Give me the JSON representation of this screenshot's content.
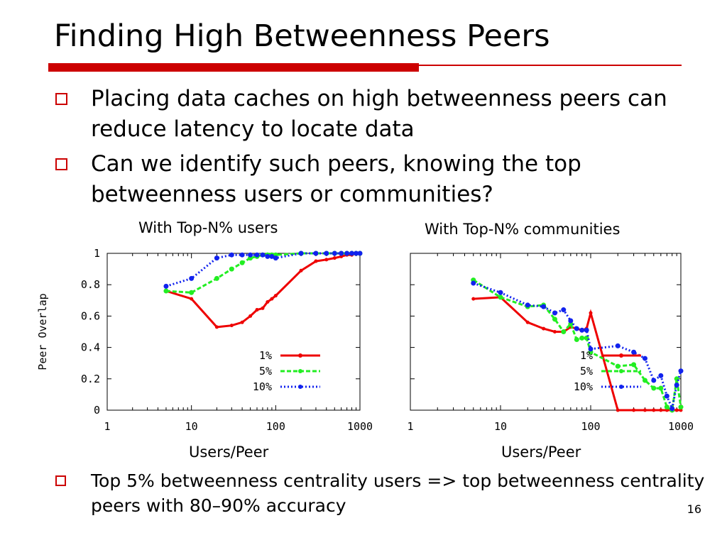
{
  "slide": {
    "title": "Finding High Betweenness Peers",
    "bullets": [
      "Placing data caches on high betweenness peers can reduce latency to locate data",
      "Can we identify such peers, knowing the top betweenness users or communities?"
    ],
    "bottom_bullet": "Top 5% betweenness centrality users => top betweenness centrality peers with 80–90% accuracy",
    "page_number": "16",
    "accent_color": "#cc0000"
  },
  "chart_data": [
    {
      "type": "line",
      "title": "With Top-N% users",
      "xlabel": "Users/Peer",
      "ylabel": "Peer Overlap",
      "xscale": "log",
      "xlim": [
        1,
        1000
      ],
      "ylim": [
        0,
        1
      ],
      "xticks": [
        "1",
        "10",
        "100",
        "1000"
      ],
      "yticks": [
        "0",
        "0.2",
        "0.4",
        "0.6",
        "0.8",
        "1"
      ],
      "legend_position": "bottom-right",
      "series": [
        {
          "name": "1%",
          "color": "#ee0000",
          "style": "solid",
          "x": [
            5,
            10,
            20,
            30,
            40,
            50,
            60,
            70,
            80,
            90,
            100,
            200,
            300,
            400,
            500,
            600,
            700,
            800,
            900,
            1000
          ],
          "y": [
            0.76,
            0.71,
            0.53,
            0.54,
            0.56,
            0.6,
            0.64,
            0.65,
            0.69,
            0.71,
            0.73,
            0.89,
            0.95,
            0.96,
            0.97,
            0.98,
            0.99,
            0.99,
            1.0,
            1.0
          ]
        },
        {
          "name": "5%",
          "color": "#22ee22",
          "style": "dashed",
          "x": [
            5,
            10,
            20,
            30,
            40,
            50,
            60,
            70,
            80,
            90,
            100,
            200,
            300,
            400,
            500,
            600,
            700,
            800,
            900,
            1000
          ],
          "y": [
            0.76,
            0.75,
            0.84,
            0.9,
            0.94,
            0.97,
            0.98,
            0.99,
            0.99,
            0.99,
            0.99,
            1.0,
            1.0,
            1.0,
            1.0,
            1.0,
            1.0,
            1.0,
            1.0,
            1.0
          ]
        },
        {
          "name": "10%",
          "color": "#1122ee",
          "style": "dotted",
          "x": [
            5,
            10,
            20,
            30,
            40,
            50,
            60,
            70,
            80,
            90,
            100,
            200,
            300,
            400,
            500,
            600,
            700,
            800,
            900,
            1000
          ],
          "y": [
            0.79,
            0.84,
            0.97,
            0.99,
            0.99,
            0.99,
            0.99,
            0.99,
            0.98,
            0.98,
            0.97,
            1.0,
            1.0,
            1.0,
            1.0,
            1.0,
            1.0,
            1.0,
            1.0,
            1.0
          ]
        }
      ]
    },
    {
      "type": "line",
      "title": "With Top-N% communities",
      "xlabel": "Users/Peer",
      "xscale": "log",
      "xlim": [
        1,
        1000
      ],
      "ylim": [
        0,
        1
      ],
      "xticks": [
        "1",
        "10",
        "100",
        "1000"
      ],
      "legend_position": "bottom-right",
      "series": [
        {
          "name": "1%",
          "color": "#ee0000",
          "style": "solid",
          "x": [
            5,
            10,
            20,
            30,
            40,
            50,
            60,
            70,
            80,
            90,
            100,
            200,
            300,
            400,
            500,
            600,
            700,
            800,
            900,
            1000
          ],
          "y": [
            0.71,
            0.72,
            0.56,
            0.52,
            0.5,
            0.5,
            0.53,
            0.52,
            0.51,
            0.52,
            0.62,
            0.0,
            0.0,
            0.0,
            0.0,
            0.0,
            0.0,
            0.0,
            0.0,
            0.0
          ]
        },
        {
          "name": "5%",
          "color": "#22ee22",
          "style": "dashed",
          "x": [
            5,
            10,
            20,
            30,
            40,
            50,
            60,
            70,
            80,
            90,
            100,
            200,
            300,
            400,
            500,
            600,
            700,
            800,
            900,
            1000
          ],
          "y": [
            0.83,
            0.72,
            0.66,
            0.67,
            0.58,
            0.5,
            0.55,
            0.45,
            0.46,
            0.46,
            0.37,
            0.28,
            0.29,
            0.19,
            0.14,
            0.14,
            0.02,
            0.0,
            0.2,
            0.02
          ]
        },
        {
          "name": "10%",
          "color": "#1122ee",
          "style": "dotted",
          "x": [
            5,
            10,
            20,
            30,
            40,
            50,
            60,
            70,
            80,
            90,
            100,
            200,
            300,
            400,
            500,
            600,
            700,
            800,
            900,
            1000
          ],
          "y": [
            0.81,
            0.75,
            0.67,
            0.66,
            0.62,
            0.64,
            0.57,
            0.52,
            0.51,
            0.51,
            0.39,
            0.41,
            0.37,
            0.33,
            0.19,
            0.22,
            0.09,
            0.01,
            0.16,
            0.25
          ]
        }
      ]
    }
  ]
}
